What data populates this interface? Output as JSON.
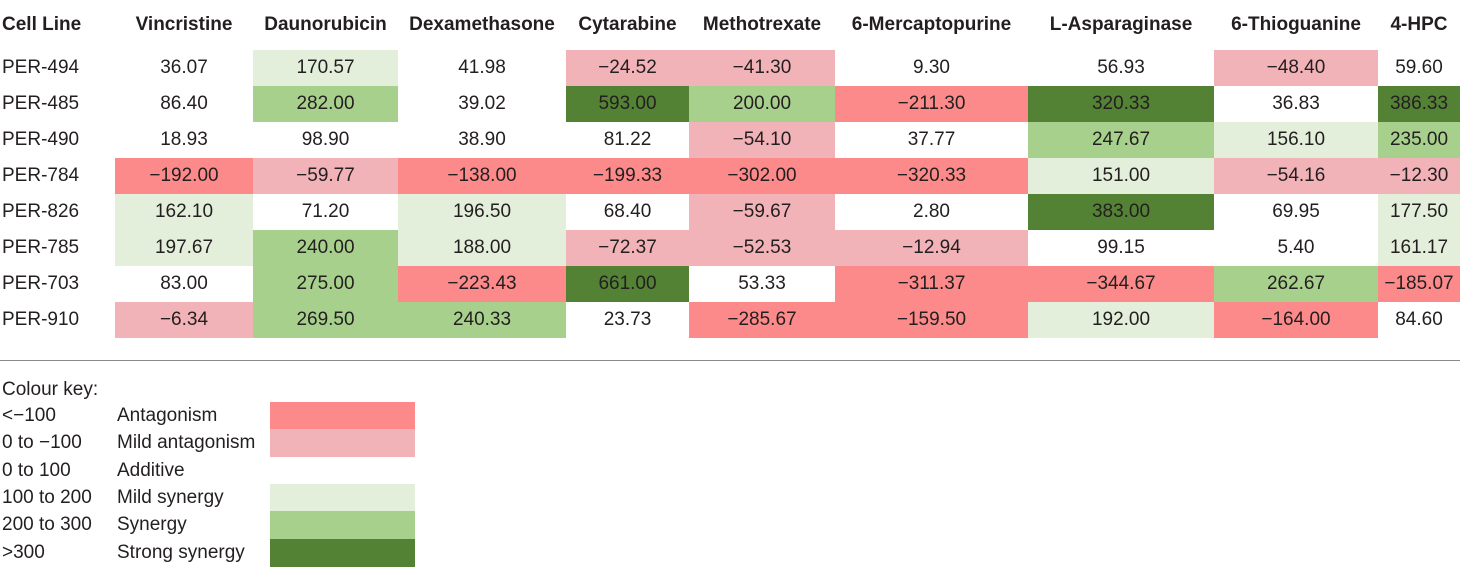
{
  "table": {
    "columns": [
      "Cell Line",
      "Vincristine",
      "Daunorubicin",
      "Dexamethasone",
      "Cytarabine",
      "Methotrexate",
      "6-Mercaptopurine",
      "L-Asparaginase",
      "6-Thioguanine",
      "4-HPC"
    ],
    "rows": [
      {
        "cells": [
          "PER-494",
          "36.07",
          "170.57",
          "41.98",
          "−24.52",
          "−41.30",
          "9.30",
          "56.93",
          "−48.40",
          "59.60"
        ]
      },
      {
        "cells": [
          "PER-485",
          "86.40",
          "282.00",
          "39.02",
          "593.00",
          "200.00",
          "−211.30",
          "320.33",
          "36.83",
          "386.33"
        ]
      },
      {
        "cells": [
          "PER-490",
          "18.93",
          "98.90",
          "38.90",
          "81.22",
          "−54.10",
          "37.77",
          "247.67",
          "156.10",
          "235.00"
        ]
      },
      {
        "cells": [
          "PER-784",
          "−192.00",
          "−59.77",
          "−138.00",
          "−199.33",
          "−302.00",
          "−320.33",
          "151.00",
          "−54.16",
          "−12.30"
        ]
      },
      {
        "cells": [
          "PER-826",
          "162.10",
          "71.20",
          "196.50",
          "68.40",
          "−59.67",
          "2.80",
          "383.00",
          "69.95",
          "177.50"
        ]
      },
      {
        "cells": [
          "PER-785",
          "197.67",
          "240.00",
          "188.00",
          "−72.37",
          "−52.53",
          "−12.94",
          "99.15",
          "5.40",
          "161.17"
        ]
      },
      {
        "cells": [
          "PER-703",
          "83.00",
          "275.00",
          "−223.43",
          "661.00",
          "53.33",
          "−311.37",
          "−344.67",
          "262.67",
          "−185.07"
        ]
      },
      {
        "cells": [
          "PER-910",
          "−6.34",
          "269.50",
          "240.33",
          "23.73",
          "−285.67",
          "−159.50",
          "192.00",
          "−164.00",
          "84.60"
        ]
      }
    ]
  },
  "colour_key": {
    "title": "Colour key:",
    "entries": [
      {
        "range": "<−100",
        "label": "Antagonism",
        "color": "#fd8a8a"
      },
      {
        "range": "0 to −100",
        "label": "Mild antagonism",
        "color": "#f2b3b8"
      },
      {
        "range": "0 to 100",
        "label": "Additive",
        "color": ""
      },
      {
        "range": "100 to 200",
        "label": "Mild synergy",
        "color": "#e3efda"
      },
      {
        "range": "200 to 300",
        "label": "Synergy",
        "color": "#a8d08d"
      },
      {
        "range": ">300",
        "label": "Strong synergy",
        "color": "#548235"
      }
    ]
  }
}
